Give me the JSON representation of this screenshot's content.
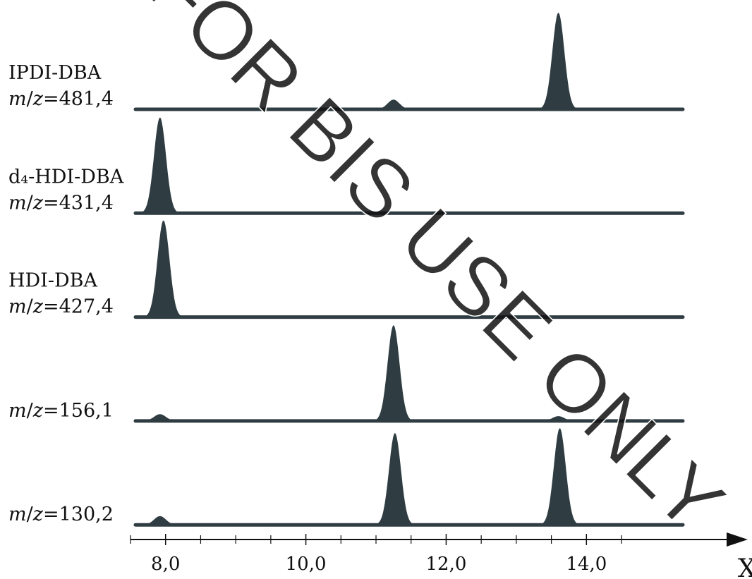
{
  "chart_data": {
    "type": "area",
    "watermark": "FOR BIS USE ONLY",
    "x_label": "X",
    "xlim": [
      7.5,
      16.3
    ],
    "xticks": [
      {
        "value": 8,
        "label": "8,0"
      },
      {
        "value": 10,
        "label": "10,0"
      },
      {
        "value": 12,
        "label": "12,0"
      },
      {
        "value": 14,
        "label": "14,0"
      }
    ],
    "xminor_ticks": [
      7.5,
      8.5,
      9,
      9.5,
      10.5,
      11,
      11.5,
      12.5,
      13,
      13.5,
      14.5
    ],
    "series": [
      {
        "name": "IPDI-DBA",
        "mz": "m/z=481,4",
        "color": "#2f3d42",
        "x": [
          11.25,
          13.6
        ],
        "values": [
          10,
          100
        ]
      },
      {
        "name": "d₄-HDI-DBA",
        "mz": "m/z=431,4",
        "color": "#2f3d42",
        "x": [
          7.92
        ],
        "values": [
          99
        ]
      },
      {
        "name": "HDI-DBA",
        "mz": "m/z=427,4",
        "color": "#2f3d42",
        "x": [
          7.97
        ],
        "values": [
          100
        ]
      },
      {
        "mz": "m/z=156,1",
        "color": "#2f3d42",
        "x": [
          7.92,
          11.25,
          13.6
        ],
        "values": [
          7,
          99,
          5
        ]
      },
      {
        "mz": "m/z=130,2",
        "color": "#2f3d42",
        "x": [
          7.92,
          11.27,
          13.62
        ],
        "values": [
          9,
          95,
          100
        ]
      }
    ]
  }
}
